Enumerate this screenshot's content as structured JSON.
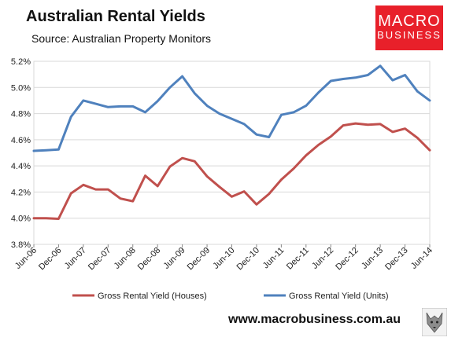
{
  "title": "Australian Rental Yields",
  "subtitle": "Source: Australian Property Monitors",
  "logo": {
    "line1": "MACRO",
    "line2": "BUSINESS",
    "color": "#e8202a"
  },
  "footer": "www.macrobusiness.com.au",
  "chart_data": {
    "type": "line",
    "title": "Australian Rental Yields",
    "grid": true,
    "legend_position": "bottom",
    "ylim": [
      3.8,
      5.2
    ],
    "yticks": [
      "3.8%",
      "4.0%",
      "4.2%",
      "4.4%",
      "4.6%",
      "4.8%",
      "5.0%",
      "5.2%"
    ],
    "xticks": [
      "Jun-06",
      "Dec-06",
      "Jun-07",
      "Dec-07",
      "Jun-08",
      "Dec-08",
      "Jun-09",
      "Dec-09",
      "Jun-10",
      "Dec-10",
      "Jun-11",
      "Dec-11",
      "Jun-12",
      "Dec-12",
      "Jun-13",
      "Dec-13",
      "Jun-14"
    ],
    "x": [
      "Jun-06",
      "Sep-06",
      "Dec-06",
      "Mar-07",
      "Jun-07",
      "Sep-07",
      "Dec-07",
      "Mar-08",
      "Jun-08",
      "Sep-08",
      "Dec-08",
      "Mar-09",
      "Jun-09",
      "Sep-09",
      "Dec-09",
      "Mar-10",
      "Jun-10",
      "Sep-10",
      "Dec-10",
      "Mar-11",
      "Jun-11",
      "Sep-11",
      "Dec-11",
      "Mar-12",
      "Jun-12",
      "Sep-12",
      "Dec-12",
      "Mar-13",
      "Jun-13",
      "Sep-13",
      "Dec-13",
      "Mar-14",
      "Jun-14"
    ],
    "series": [
      {
        "name": "Gross Rental Yield (Houses)",
        "color": "#c0504d",
        "values": [
          4.0,
          4.0,
          3.995,
          4.19,
          4.255,
          4.22,
          4.22,
          4.15,
          4.13,
          4.325,
          4.245,
          4.395,
          4.46,
          4.435,
          4.32,
          4.24,
          4.165,
          4.205,
          4.105,
          4.185,
          4.295,
          4.38,
          4.48,
          4.56,
          4.625,
          4.71,
          4.725,
          4.715,
          4.72,
          4.66,
          4.685,
          4.615,
          4.52
        ]
      },
      {
        "name": "Gross Rental Yield (Units)",
        "color": "#4f81bd",
        "values": [
          4.515,
          4.52,
          4.525,
          4.775,
          4.9,
          4.875,
          4.85,
          4.855,
          4.855,
          4.81,
          4.895,
          5.0,
          5.085,
          4.955,
          4.86,
          4.8,
          4.76,
          4.72,
          4.64,
          4.62,
          4.79,
          4.81,
          4.86,
          4.96,
          5.05,
          5.065,
          5.075,
          5.095,
          5.165,
          5.055,
          5.095,
          4.97,
          4.9
        ]
      }
    ]
  }
}
